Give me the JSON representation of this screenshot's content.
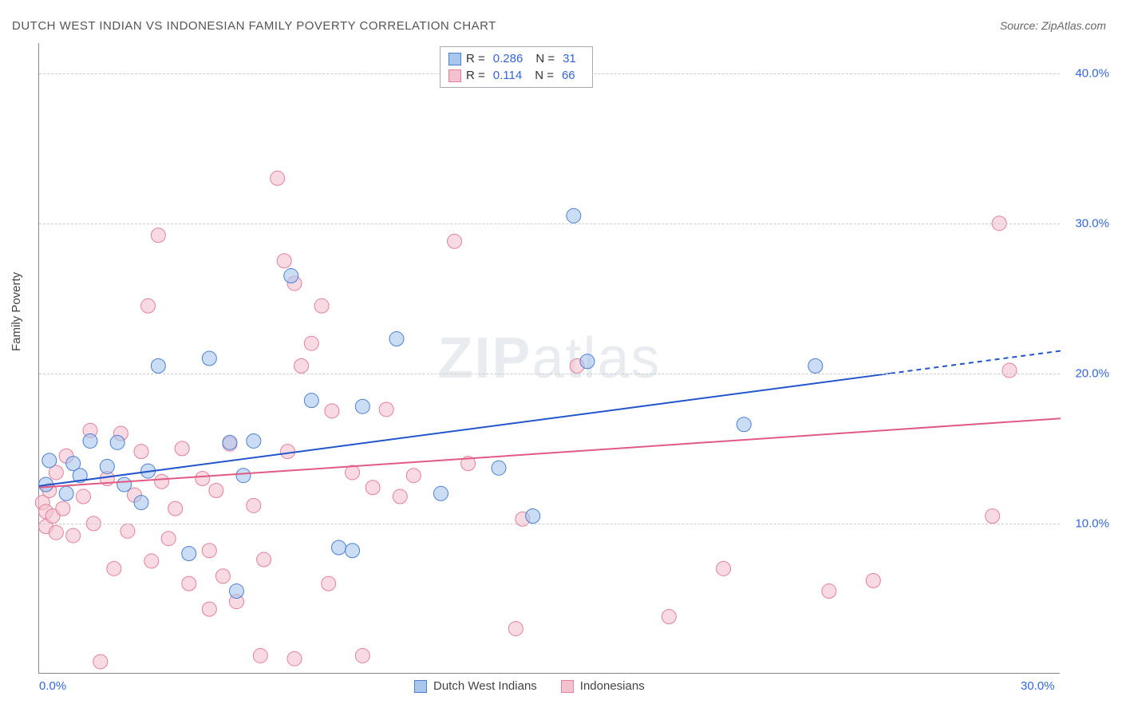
{
  "title": "DUTCH WEST INDIAN VS INDONESIAN FAMILY POVERTY CORRELATION CHART",
  "source_label": "Source: ZipAtlas.com",
  "y_axis_label": "Family Poverty",
  "watermark": "ZIPatlas",
  "chart": {
    "type": "scatter",
    "background_color": "#ffffff",
    "grid_color": "#cccccc",
    "axis_color": "#888888",
    "text_color": "#444444",
    "tick_color": "#3366dd",
    "xlim": [
      0,
      30
    ],
    "ylim": [
      0,
      42
    ],
    "x_ticks": [
      {
        "value": 0,
        "label": "0.0%"
      },
      {
        "value": 30,
        "label": "30.0%"
      }
    ],
    "y_ticks": [
      {
        "value": 10,
        "label": "10.0%"
      },
      {
        "value": 20,
        "label": "20.0%"
      },
      {
        "value": 30,
        "label": "30.0%"
      },
      {
        "value": 40,
        "label": "40.0%"
      }
    ],
    "marker_radius": 9,
    "marker_opacity": 0.6,
    "line_width": 2,
    "series": [
      {
        "name": "Dutch West Indians",
        "fill_color": "#a9c6ec",
        "stroke_color": "#4a7fd6",
        "line_color": "#2255cc",
        "r_value": "0.286",
        "n_value": "31",
        "trend": {
          "x1": 0,
          "y1": 12.5,
          "x2": 25,
          "y2": 20.0,
          "dash_x": 30,
          "dash_y": 21.5
        },
        "points": [
          [
            0.2,
            12.6
          ],
          [
            0.3,
            14.2
          ],
          [
            0.8,
            12.0
          ],
          [
            1.0,
            14.0
          ],
          [
            1.2,
            13.2
          ],
          [
            1.5,
            15.5
          ],
          [
            2.0,
            13.8
          ],
          [
            2.3,
            15.4
          ],
          [
            2.5,
            12.6
          ],
          [
            3.0,
            11.4
          ],
          [
            3.2,
            13.5
          ],
          [
            3.5,
            20.5
          ],
          [
            4.4,
            8.0
          ],
          [
            5.0,
            21.0
          ],
          [
            5.6,
            15.4
          ],
          [
            5.8,
            5.5
          ],
          [
            6.0,
            13.2
          ],
          [
            6.3,
            15.5
          ],
          [
            7.4,
            26.5
          ],
          [
            8.0,
            18.2
          ],
          [
            8.8,
            8.4
          ],
          [
            9.2,
            8.2
          ],
          [
            9.5,
            17.8
          ],
          [
            10.5,
            22.3
          ],
          [
            11.8,
            12.0
          ],
          [
            13.5,
            13.7
          ],
          [
            14.5,
            10.5
          ],
          [
            15.7,
            30.5
          ],
          [
            16.1,
            20.8
          ],
          [
            20.7,
            16.6
          ],
          [
            22.8,
            20.5
          ]
        ]
      },
      {
        "name": "Indonesians",
        "fill_color": "#f4c2cf",
        "stroke_color": "#e57f9c",
        "line_color": "#e05a84",
        "r_value": "0.114",
        "n_value": "66",
        "trend": {
          "x1": 0,
          "y1": 12.4,
          "x2": 30,
          "y2": 17.0,
          "dash_x": 30,
          "dash_y": 17.0
        },
        "points": [
          [
            0.1,
            11.4
          ],
          [
            0.2,
            9.8
          ],
          [
            0.2,
            10.8
          ],
          [
            0.3,
            12.2
          ],
          [
            0.4,
            10.5
          ],
          [
            0.5,
            9.4
          ],
          [
            0.5,
            13.4
          ],
          [
            0.7,
            11.0
          ],
          [
            0.8,
            14.5
          ],
          [
            1.0,
            9.2
          ],
          [
            1.3,
            11.8
          ],
          [
            1.5,
            16.2
          ],
          [
            1.6,
            10.0
          ],
          [
            1.8,
            0.8
          ],
          [
            2.0,
            13.0
          ],
          [
            2.2,
            7.0
          ],
          [
            2.4,
            16.0
          ],
          [
            2.6,
            9.5
          ],
          [
            2.8,
            11.9
          ],
          [
            3.0,
            14.8
          ],
          [
            3.2,
            24.5
          ],
          [
            3.3,
            7.5
          ],
          [
            3.5,
            29.2
          ],
          [
            3.6,
            12.8
          ],
          [
            3.8,
            9.0
          ],
          [
            4.0,
            11.0
          ],
          [
            4.2,
            15.0
          ],
          [
            4.4,
            6.0
          ],
          [
            4.8,
            13.0
          ],
          [
            5.0,
            4.3
          ],
          [
            5.0,
            8.2
          ],
          [
            5.2,
            12.2
          ],
          [
            5.4,
            6.5
          ],
          [
            5.6,
            15.3
          ],
          [
            5.8,
            4.8
          ],
          [
            6.3,
            11.2
          ],
          [
            6.5,
            1.2
          ],
          [
            6.6,
            7.6
          ],
          [
            7.0,
            33.0
          ],
          [
            7.2,
            27.5
          ],
          [
            7.3,
            14.8
          ],
          [
            7.5,
            26.0
          ],
          [
            7.5,
            1.0
          ],
          [
            7.7,
            20.5
          ],
          [
            8.0,
            22.0
          ],
          [
            8.3,
            24.5
          ],
          [
            8.5,
            6.0
          ],
          [
            8.6,
            17.5
          ],
          [
            9.2,
            13.4
          ],
          [
            9.5,
            1.2
          ],
          [
            9.8,
            12.4
          ],
          [
            10.2,
            17.6
          ],
          [
            10.6,
            11.8
          ],
          [
            11.0,
            13.2
          ],
          [
            12.2,
            28.8
          ],
          [
            12.6,
            14.0
          ],
          [
            14.0,
            3.0
          ],
          [
            14.2,
            10.3
          ],
          [
            15.8,
            20.5
          ],
          [
            18.5,
            3.8
          ],
          [
            20.1,
            7.0
          ],
          [
            23.2,
            5.5
          ],
          [
            24.5,
            6.2
          ],
          [
            28.0,
            10.5
          ],
          [
            28.2,
            30.0
          ],
          [
            28.5,
            20.2
          ]
        ]
      }
    ]
  },
  "legend_labels": {
    "r_prefix": "R =",
    "n_prefix": "N ="
  }
}
